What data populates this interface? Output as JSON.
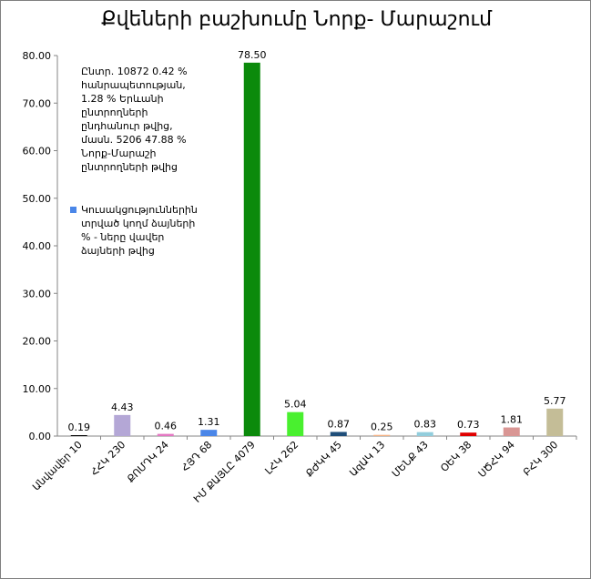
{
  "chart_data": {
    "type": "bar",
    "title": "Քվեների բաշխումը Նորք- Մարաշում",
    "categories": [
      "Անվավեր 10",
      "ՀՀԿ 230",
      "ՔՈՄԴԿ 24",
      "ՀՅԴ 68",
      "ԻՄ ՔԱՅԼԸ 4079",
      "ԼՀԿ 262",
      "ՔԺԿԿ 45",
      "ԱզԱԿ 13",
      "ՄԵՆՔ 43",
      "ՕԵԿ 38",
      "ՍԾՀԿ 94",
      "ԲՀԿ 300"
    ],
    "values": [
      0.19,
      4.43,
      0.46,
      1.31,
      78.5,
      5.04,
      0.87,
      0.25,
      0.83,
      0.73,
      1.81,
      5.77
    ],
    "value_labels": [
      "0.19",
      "4.43",
      "0.46",
      "1.31",
      "78.50",
      "5.04",
      "0.87",
      "0.25",
      "0.83",
      "0.73",
      "1.81",
      "5.77"
    ],
    "colors": [
      "#000000",
      "#b4a7d6",
      "#e377c2",
      "#4a86e8",
      "#0b8a0b",
      "#49f02f",
      "#1f4e79",
      "#f4b183",
      "#92cddc",
      "#e00000",
      "#d99694",
      "#c4bd97"
    ],
    "ylim": [
      0,
      80
    ],
    "yticks": [
      "0.00",
      "10.00",
      "20.00",
      "30.00",
      "40.00",
      "50.00",
      "60.00",
      "70.00",
      "80.00"
    ],
    "grid": false,
    "legend": {
      "note_lines": [
        "Ընտր. 10872 0.42 %",
        "հանրապետության,",
        "1.28 % Երևանի",
        "ընտրողների",
        "ընդհանուր թվից,",
        "մասն.  5206 47.88 %",
        "Նորք-Մարաշի",
        "ընտրողների թվից"
      ],
      "series_label_lines": [
        "Կուսակցություններին",
        "տրված կողմ ձայների",
        "% - ները վավեր",
        "ձայների թվից"
      ],
      "series_color": "#4a86e8",
      "placement": "top-left"
    }
  }
}
